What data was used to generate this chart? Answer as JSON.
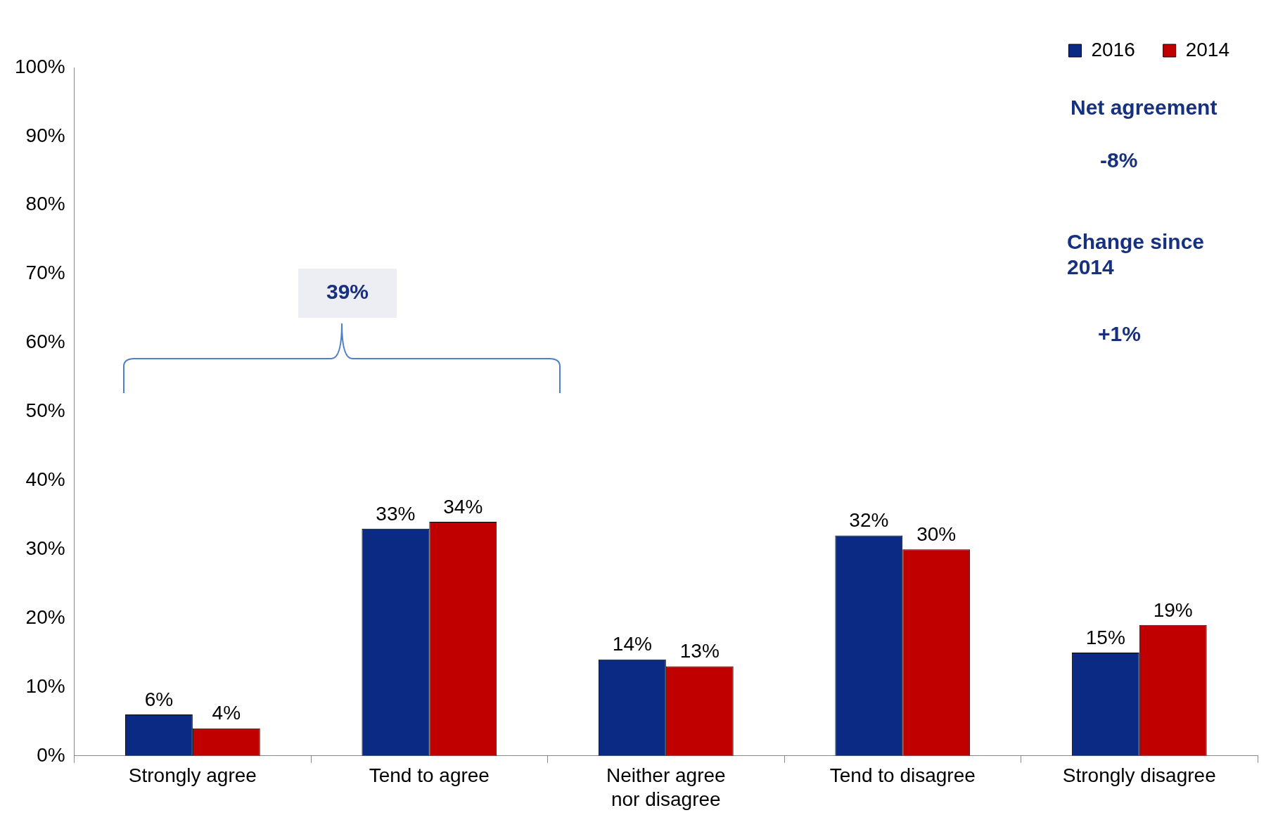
{
  "chart_data": {
    "type": "bar",
    "categories": [
      "Strongly agree",
      "Tend to agree",
      "Neither agree nor disagree",
      "Tend to disagree",
      "Strongly disagree"
    ],
    "series": [
      {
        "name": "2016",
        "color": "#0a2a83",
        "values": [
          6,
          33,
          14,
          32,
          15
        ],
        "value_labels": [
          "6%",
          "33%",
          "14%",
          "32%",
          "15%"
        ]
      },
      {
        "name": "2014",
        "color": "#c00000",
        "values": [
          4,
          34,
          13,
          30,
          19
        ],
        "value_labels": [
          "4%",
          "34%",
          "13%",
          "30%",
          "19%"
        ]
      }
    ],
    "ylim": [
      0,
      100
    ],
    "yticks": [
      {
        "value": 0,
        "label": "0%"
      },
      {
        "value": 10,
        "label": "10%"
      },
      {
        "value": 20,
        "label": "20%"
      },
      {
        "value": 30,
        "label": "30%"
      },
      {
        "value": 40,
        "label": "40%"
      },
      {
        "value": 50,
        "label": "50%"
      },
      {
        "value": 60,
        "label": "60%"
      },
      {
        "value": 70,
        "label": "70%"
      },
      {
        "value": 80,
        "label": "80%"
      },
      {
        "value": 90,
        "label": "90%"
      },
      {
        "value": 100,
        "label": "100%"
      }
    ],
    "legend": "top right",
    "annotations": [
      "39%",
      "Net agreement",
      "-8%",
      "Change since 2014",
      "+1%"
    ]
  }
}
